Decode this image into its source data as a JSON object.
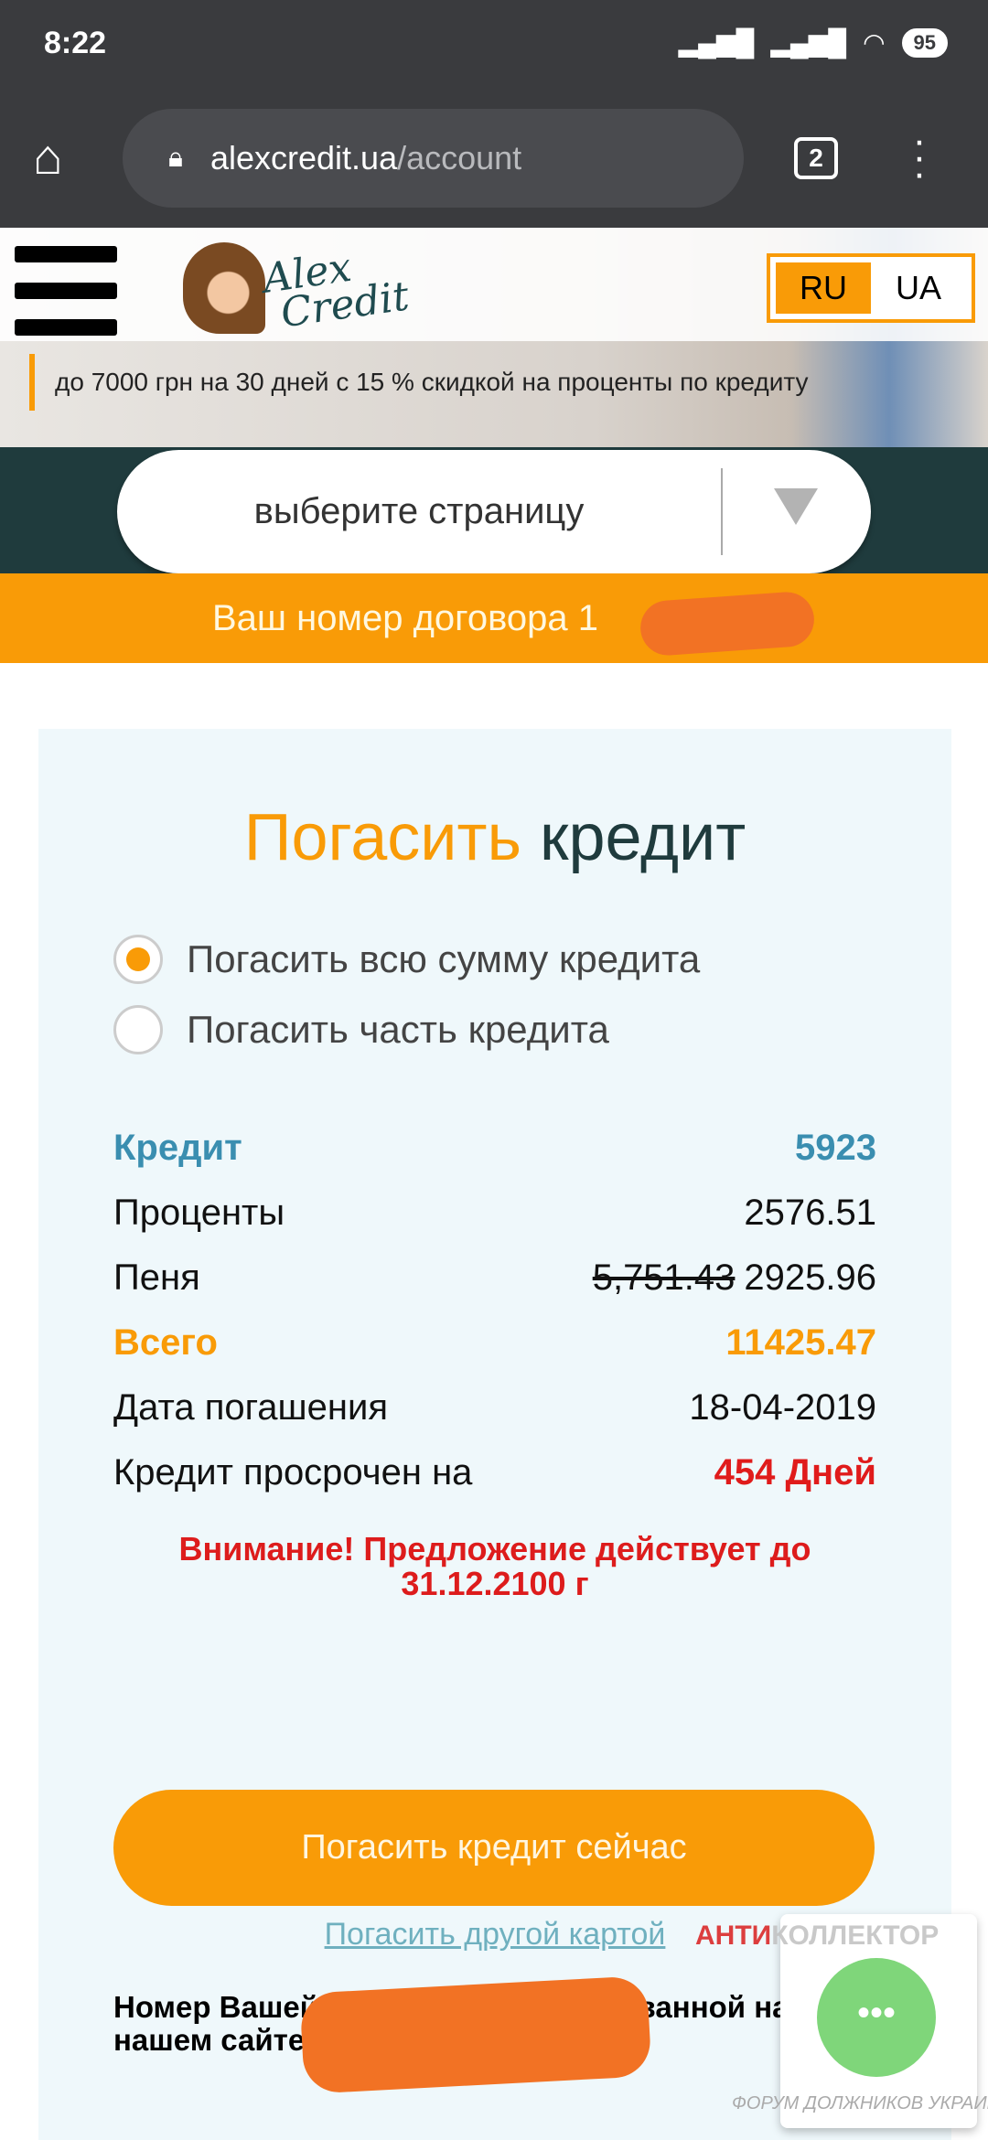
{
  "status_bar": {
    "time": "8:22",
    "battery": "95",
    "icons": [
      "signal-icon",
      "signal-icon",
      "wifi-icon",
      "battery-icon"
    ]
  },
  "browser": {
    "url_domain": "alexcredit.ua",
    "url_path": "/account",
    "tab_count": "2"
  },
  "header": {
    "logo_text": "Alex Credit",
    "languages": [
      "RU",
      "UA"
    ],
    "active_language": "RU",
    "promo_text": "до 7000 грн на 30 дней с 15 % скидкой на проценты по кредиту"
  },
  "nav": {
    "select_placeholder": "выберите страницу"
  },
  "contract": {
    "label": "Ваш номер договора 1"
  },
  "payment": {
    "title_accent": "Погасить",
    "title_rest": "кредит",
    "options": [
      {
        "label": "Погасить всю сумму кредита",
        "selected": true
      },
      {
        "label": "Погасить часть кредита",
        "selected": false
      }
    ],
    "rows": {
      "credit": {
        "label": "Кредит",
        "value": "5923"
      },
      "interest": {
        "label": "Проценты",
        "value": "2576.51"
      },
      "penalty": {
        "label": "Пеня",
        "old_value": "5,751.43",
        "value": "2925.96"
      },
      "total": {
        "label": "Всего",
        "value": "11425.47"
      },
      "due_date": {
        "label": "Дата погашения",
        "value": "18-04-2019"
      },
      "overdue": {
        "label": "Кредит просрочен на",
        "value": "454 Дней"
      }
    },
    "warning_line1": "Внимание! Предложение действует до",
    "warning_line2": "31.12.2100 г",
    "pay_button": "Погасить кредит сейчас",
    "other_card_link": "Погасить другой картой",
    "card_note_line1": "Номер Вашей карты, зарегистрированной на",
    "card_note_line2": "нашем сайте:"
  },
  "watermark": {
    "red": "АНТИ",
    "grey": "КОЛЛЕКТОР",
    "sub": "ФОРУМ ДОЛЖНИКОВ УКРАИНЫ"
  },
  "colors": {
    "accent": "#f99b07",
    "dark": "#1f3b3d",
    "credit_blue": "#3a8eb0",
    "alert_red": "#e01b1b",
    "card_bg": "#eff8fb"
  }
}
